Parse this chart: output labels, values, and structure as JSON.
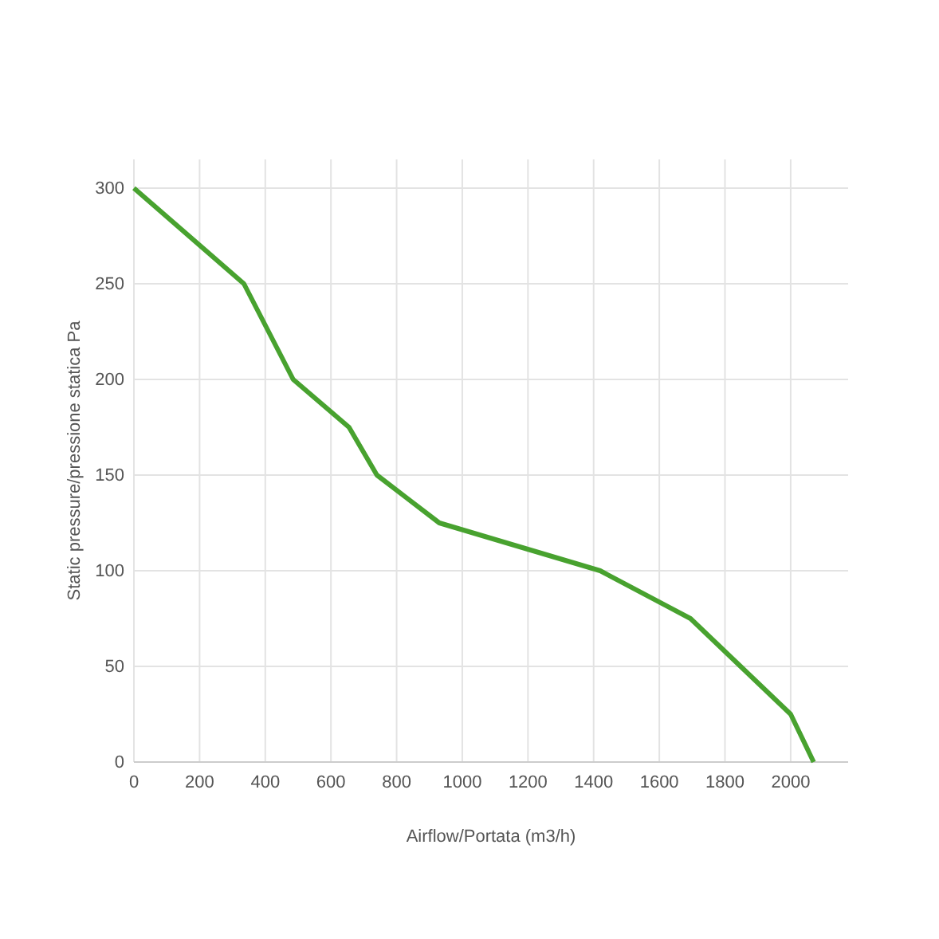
{
  "chart_data": {
    "type": "line",
    "xlabel": "Airflow/Portata (m3/h)",
    "ylabel": "Static pressure/pressione statica Pa",
    "x": [
      0,
      335,
      485,
      655,
      740,
      930,
      1420,
      1695,
      2000,
      2070
    ],
    "series": [
      {
        "color": "#48a22f",
        "values": [
          300,
          250,
          200,
          175,
          150,
          125,
          100,
          75,
          25,
          0
        ]
      }
    ],
    "xlim": [
      0,
      2175
    ],
    "xticks": [
      0,
      200,
      400,
      600,
      800,
      1000,
      1200,
      1400,
      1600,
      1800,
      2000
    ],
    "ylim": [
      0,
      315
    ],
    "yticks": [
      0,
      50,
      100,
      150,
      200,
      250,
      300
    ],
    "grid": true,
    "marker": "none",
    "line_style": "solid"
  }
}
